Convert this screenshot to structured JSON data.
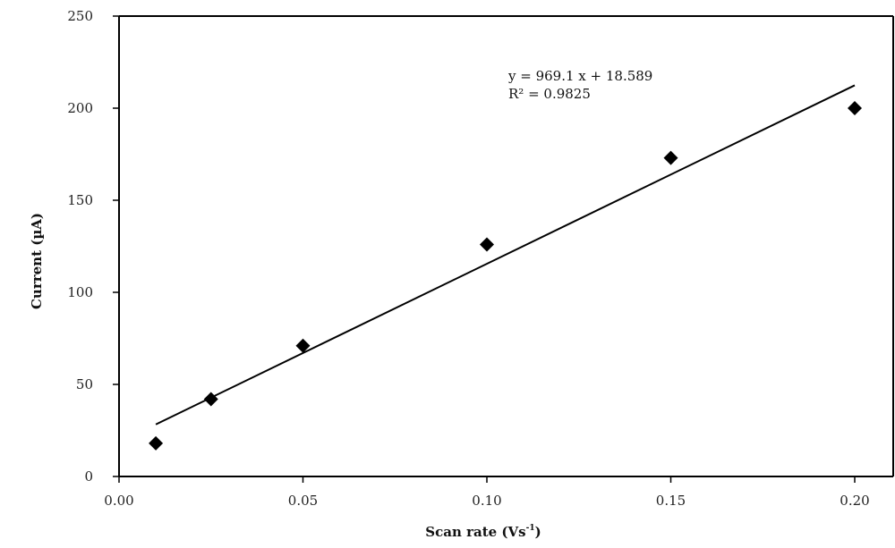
{
  "chart_data": {
    "type": "scatter",
    "title": "",
    "xlabel": "Scan rate (Vs",
    "xlabel_sup": "-1",
    "xlabel_close": ")",
    "ylabel": "Current (µA)",
    "xlim": [
      0.0,
      0.2
    ],
    "ylim": [
      0,
      250
    ],
    "x_ticks": [
      0.0,
      0.05,
      0.1,
      0.15,
      0.2
    ],
    "x_tick_labels": [
      "0.00",
      "0.05",
      "0.10",
      "0.15",
      "0.20"
    ],
    "y_ticks": [
      0,
      50,
      100,
      150,
      200,
      250
    ],
    "y_tick_labels": [
      "0",
      "50",
      "100",
      "150",
      "200",
      "250"
    ],
    "grid": false,
    "marker": "diamond",
    "series": [
      {
        "x": [
          0.01,
          0.025,
          0.05,
          0.1,
          0.15,
          0.2
        ],
        "y": [
          18,
          42,
          71,
          126,
          173,
          200
        ]
      }
    ],
    "trendline": {
      "slope": 969.1,
      "intercept": 18.589,
      "x_range": [
        0.01,
        0.2
      ],
      "equation": "y = 969.1 x + 18.589",
      "r2_label": "R² = 0.9825"
    },
    "colors": {
      "marker": "#000000",
      "line": "#000000",
      "axis": "#000000"
    }
  }
}
